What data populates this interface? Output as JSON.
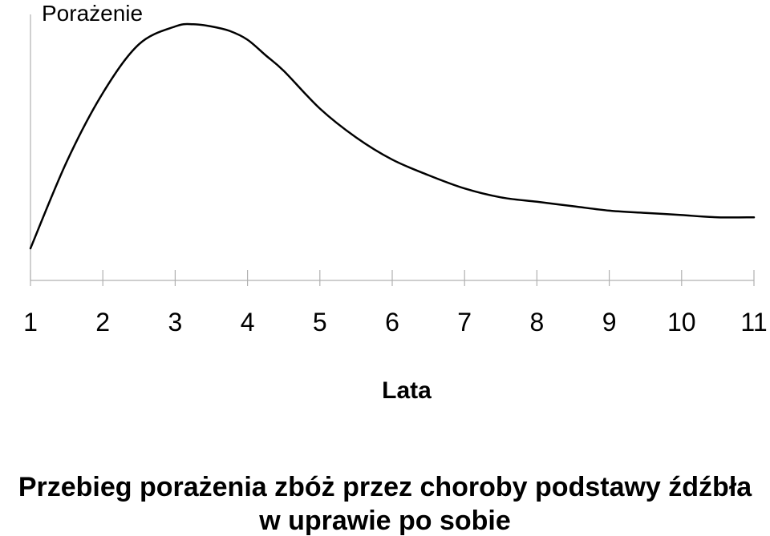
{
  "chart_data": {
    "type": "line",
    "ylabel": "Porażenie",
    "xlabel": "Lata",
    "caption_lines": [
      "Przebieg porażenia zbóż przez choroby podstawy źdźbła",
      "w uprawie po sobie"
    ],
    "categories": [
      "1",
      "2",
      "3",
      "4",
      "5",
      "6",
      "7",
      "8",
      "9",
      "10",
      "11"
    ],
    "x_range": [
      1,
      11
    ],
    "y_ticks_shown": false,
    "grid": false,
    "series": [
      {
        "x": [
          1.0,
          1.5,
          2.0,
          2.5,
          3.0,
          3.25,
          3.5,
          3.75,
          4.0,
          4.25,
          4.5,
          5.0,
          5.5,
          6.0,
          6.5,
          7.0,
          7.5,
          8.0,
          8.5,
          9.0,
          9.5,
          10.0,
          10.5,
          11.0
        ],
        "y": [
          0.0,
          0.39,
          0.7,
          0.92,
          1.0,
          1.01,
          1.0,
          0.98,
          0.94,
          0.87,
          0.8,
          0.63,
          0.5,
          0.4,
          0.33,
          0.27,
          0.23,
          0.21,
          0.19,
          0.17,
          0.16,
          0.15,
          0.14,
          0.14
        ]
      }
    ]
  }
}
